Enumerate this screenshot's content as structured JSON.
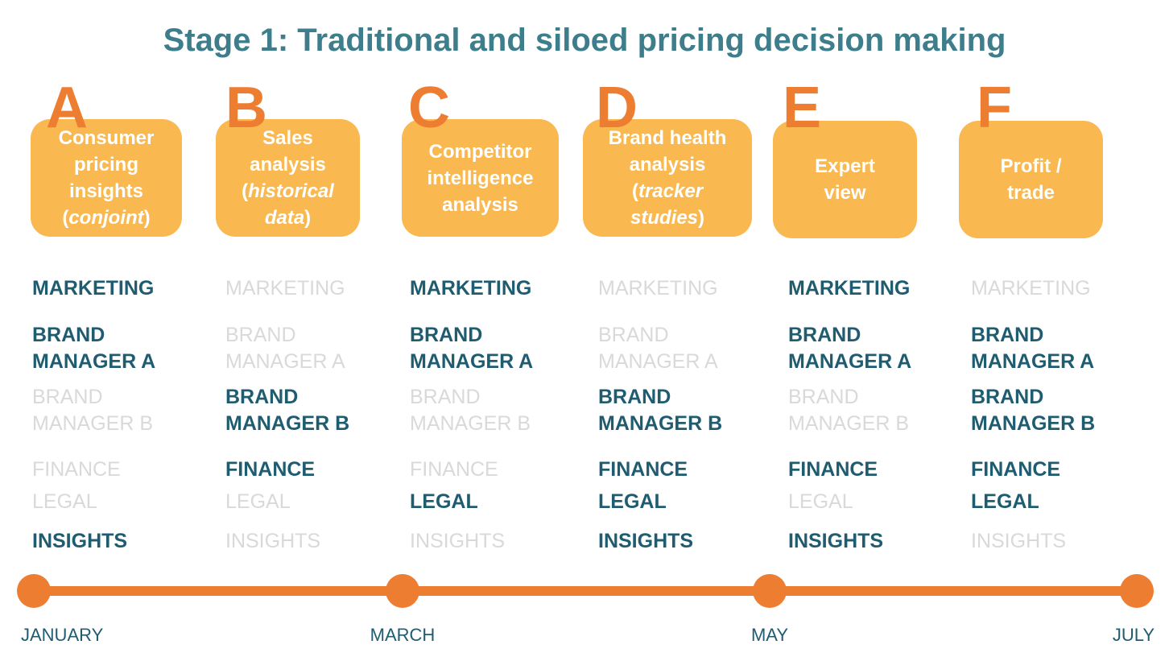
{
  "title": "Stage 1: Traditional and siloed pricing decision making",
  "columns": [
    {
      "letter": "A",
      "box": [
        {
          "text": "Consumer\npricing\ninsights\n("
        },
        {
          "text": "conjoint",
          "italic": true
        },
        {
          "text": ")"
        }
      ],
      "roles": [
        {
          "text": "MARKETING",
          "active": true
        },
        {
          "text": "BRAND\nMANAGER A",
          "active": true
        },
        {
          "text": "BRAND\nMANAGER B",
          "active": false
        },
        {
          "text": "FINANCE",
          "active": false
        },
        {
          "text": "LEGAL",
          "active": false
        },
        {
          "text": "INSIGHTS",
          "active": true
        }
      ]
    },
    {
      "letter": "B",
      "box": [
        {
          "text": "Sales\nanalysis\n("
        },
        {
          "text": "historical\ndata",
          "italic": true
        },
        {
          "text": ")"
        }
      ],
      "roles": [
        {
          "text": "MARKETING",
          "active": false
        },
        {
          "text": "BRAND\nMANAGER A",
          "active": false
        },
        {
          "text": "BRAND\nMANAGER B",
          "active": true
        },
        {
          "text": "FINANCE",
          "active": true
        },
        {
          "text": "LEGAL",
          "active": false
        },
        {
          "text": "INSIGHTS",
          "active": false
        }
      ]
    },
    {
      "letter": "C",
      "box": [
        {
          "text": "Competitor\nintelligence\nanalysis"
        }
      ],
      "roles": [
        {
          "text": "MARKETING",
          "active": true
        },
        {
          "text": "BRAND\nMANAGER A",
          "active": true
        },
        {
          "text": "BRAND\nMANAGER B",
          "active": false
        },
        {
          "text": "FINANCE",
          "active": false
        },
        {
          "text": "LEGAL",
          "active": true
        },
        {
          "text": "INSIGHTS",
          "active": false
        }
      ]
    },
    {
      "letter": "D",
      "box": [
        {
          "text": "Brand health\nanalysis\n("
        },
        {
          "text": "tracker\nstudies",
          "italic": true
        },
        {
          "text": ")"
        }
      ],
      "roles": [
        {
          "text": "MARKETING",
          "active": false
        },
        {
          "text": "BRAND\nMANAGER A",
          "active": false
        },
        {
          "text": "BRAND\nMANAGER B",
          "active": true
        },
        {
          "text": "FINANCE",
          "active": true
        },
        {
          "text": "LEGAL",
          "active": true
        },
        {
          "text": "INSIGHTS",
          "active": true
        }
      ]
    },
    {
      "letter": "E",
      "box": [
        {
          "text": "Expert\nview"
        }
      ],
      "roles": [
        {
          "text": "MARKETING",
          "active": true
        },
        {
          "text": "BRAND\nMANAGER A",
          "active": true
        },
        {
          "text": "BRAND\nMANAGER B",
          "active": false
        },
        {
          "text": "FINANCE",
          "active": true
        },
        {
          "text": "LEGAL",
          "active": false
        },
        {
          "text": "INSIGHTS",
          "active": true
        }
      ]
    },
    {
      "letter": "F",
      "box": [
        {
          "text": "Profit /\ntrade"
        }
      ],
      "roles": [
        {
          "text": "MARKETING",
          "active": false
        },
        {
          "text": "BRAND\nMANAGER A",
          "active": true
        },
        {
          "text": "BRAND\nMANAGER B",
          "active": true
        },
        {
          "text": "FINANCE",
          "active": true
        },
        {
          "text": "LEGAL",
          "active": true
        },
        {
          "text": "INSIGHTS",
          "active": false
        }
      ]
    }
  ],
  "timeline": [
    "JANUARY",
    "MARCH",
    "MAY",
    "JULY"
  ]
}
